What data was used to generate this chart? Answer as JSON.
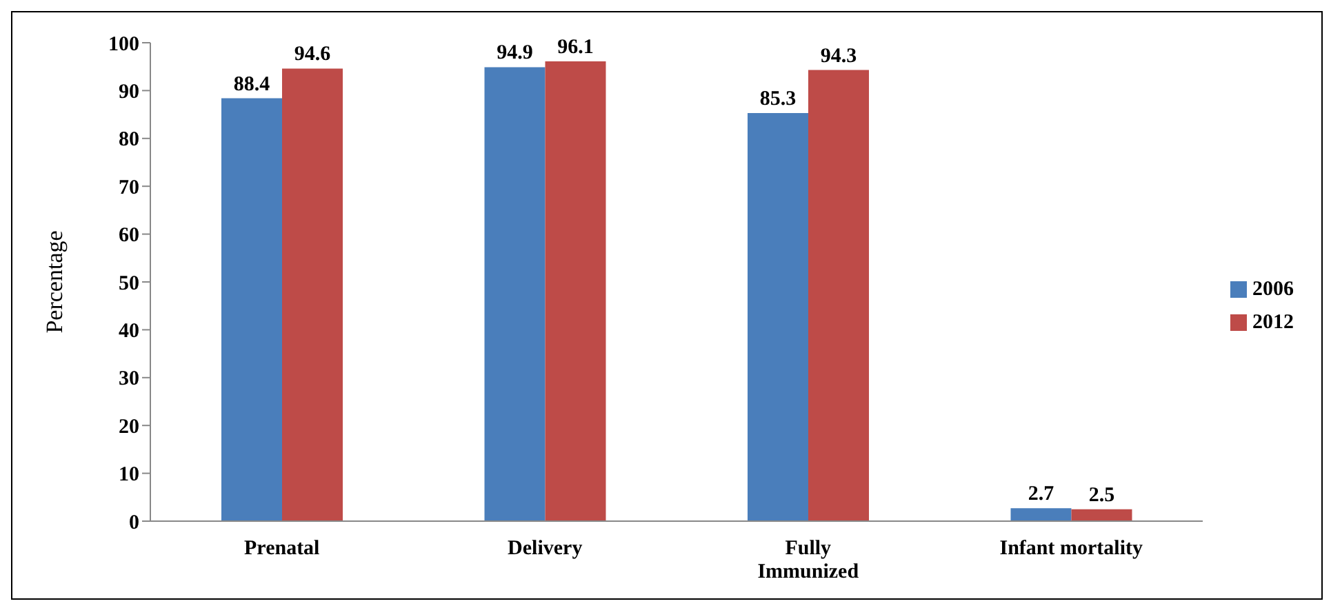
{
  "chart_data": {
    "type": "bar",
    "ylabel": "Percentage",
    "categories": [
      "Prenatal",
      "Delivery",
      "Fully\nImmunized",
      "Infant mortality"
    ],
    "series": [
      {
        "name": "2006",
        "color": "#4a7ebb",
        "values": [
          88.4,
          94.9,
          85.3,
          2.7
        ]
      },
      {
        "name": "2012",
        "color": "#be4b48",
        "values": [
          94.6,
          96.1,
          94.3,
          2.5
        ]
      }
    ],
    "ylim": [
      0,
      100
    ],
    "yticks": [
      0,
      10,
      20,
      30,
      40,
      50,
      60,
      70,
      80,
      90,
      100
    ],
    "data_labels": true,
    "grid": false,
    "legend": "right"
  }
}
